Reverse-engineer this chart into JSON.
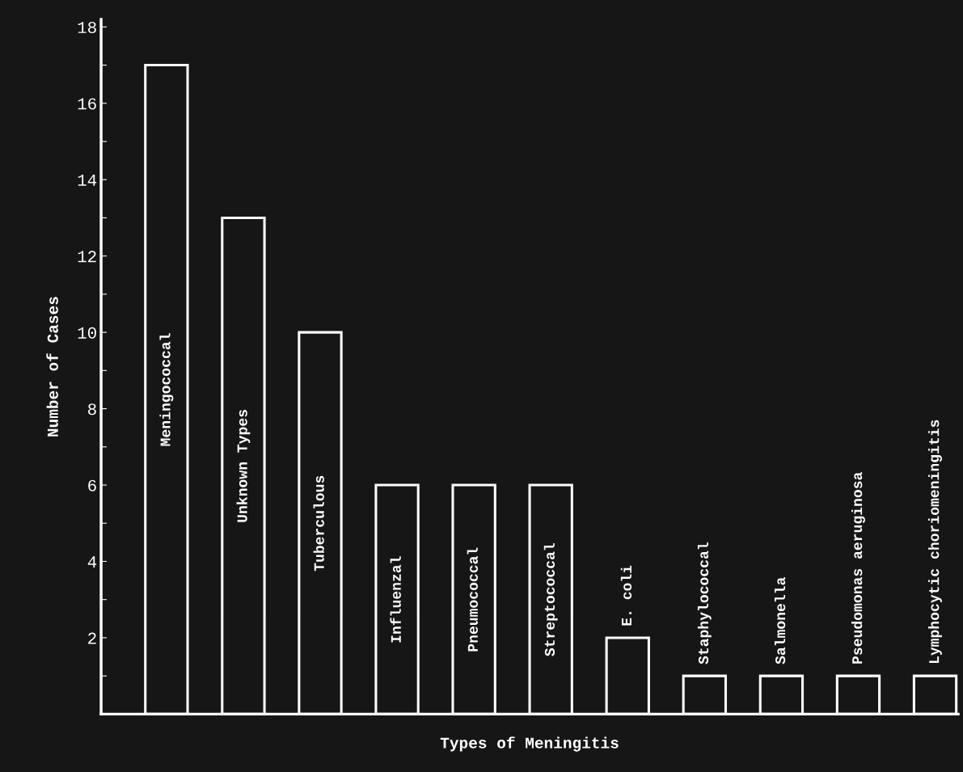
{
  "chart_data": {
    "type": "bar",
    "xlabel": "Types of Meningitis",
    "ylabel": "Number of Cases",
    "categories": [
      "Meningococcal",
      "Unknown Types",
      "Tuberculous",
      "Influenzal",
      "Pneumococcal",
      "Streptococcal",
      "E. coli",
      "Staphylococcal",
      "Salmonella",
      "Pseudomonas aeruginosa",
      "Lymphocytic choriomeningitis"
    ],
    "values": [
      17,
      13,
      10,
      6,
      6,
      6,
      2,
      1,
      1,
      1,
      1
    ],
    "color": "#ffffff",
    "ylim": [
      0,
      18.2
    ],
    "yticks": [
      {
        "value": 1,
        "label": null
      },
      2,
      {
        "value": 3,
        "label": null
      },
      4,
      {
        "value": 5,
        "label": null
      },
      6,
      {
        "value": 7,
        "label": null
      },
      8,
      {
        "value": 9,
        "label": null
      },
      10,
      {
        "value": 11,
        "label": null
      },
      12,
      {
        "value": 13,
        "label": null
      },
      14,
      {
        "value": 15,
        "label": null
      },
      16,
      {
        "value": 17,
        "label": null
      },
      18
    ],
    "grid": false,
    "legend": false
  }
}
